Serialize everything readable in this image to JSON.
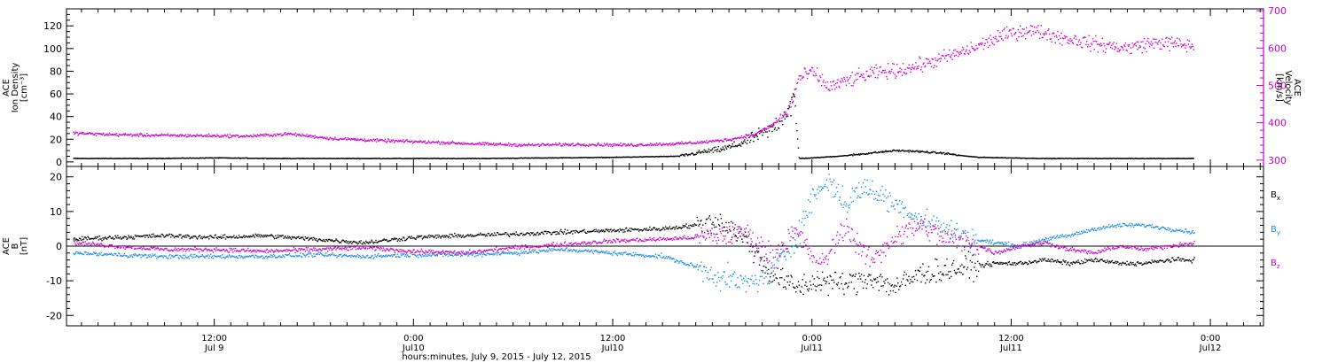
{
  "colors": {
    "axis": "#000000",
    "magenta": "#cc00cc",
    "blue": "#1f8fe6",
    "black": "#000000"
  },
  "xaxis": {
    "caption": "hours:minutes, July  9, 2015 - July 12, 2015",
    "ticks": [
      {
        "hour": 12,
        "time": "12:00",
        "date": "Jul 9"
      },
      {
        "hour": 24,
        "time": "0:00",
        "date": "Jul10"
      },
      {
        "hour": 36,
        "time": "12:00",
        "date": "Jul10"
      },
      {
        "hour": 48,
        "time": "0:00",
        "date": "Jul11"
      },
      {
        "hour": 60,
        "time": "12:00",
        "date": "Jul11"
      },
      {
        "hour": 72,
        "time": "0:00",
        "date": "Jul12"
      }
    ],
    "range_hours": [
      3.1,
      75.2
    ],
    "minor_step_hours": 1
  },
  "chart_data": [
    {
      "type": "scatter",
      "panel": "plasma",
      "ylabel_left": [
        "ACE",
        "Ion Density",
        "[cm⁻³]"
      ],
      "ylabel_right": [
        "ACE",
        "Velocity",
        "[km/s]"
      ],
      "ylim_left": [
        -4,
        135
      ],
      "ylim_right": [
        283,
        705
      ],
      "yticks_left": [
        "0",
        "20",
        "40",
        "60",
        "80",
        "100",
        "120"
      ],
      "yticks_right": [
        "300",
        "400",
        "500",
        "600",
        "700"
      ],
      "series": [
        {
          "axis": "left",
          "color": "black",
          "x_hours": [
            3.5,
            8,
            12,
            16,
            20,
            24,
            28,
            32,
            36,
            38,
            40,
            41.5,
            42.5,
            43.5,
            44.5,
            45.5,
            46.2,
            46.9,
            47.2,
            48,
            49,
            50,
            51,
            52,
            53,
            54,
            55,
            56,
            57,
            58,
            60,
            62,
            64,
            66,
            68,
            70,
            71
          ],
          "values": [
            3,
            3,
            3.5,
            3,
            3,
            3,
            3,
            3.5,
            4,
            4.5,
            5,
            9,
            11,
            15,
            22,
            28,
            40,
            55,
            3,
            3.5,
            4.5,
            5.5,
            7,
            8.5,
            10,
            9.5,
            8.5,
            7.5,
            5.5,
            4,
            3.5,
            3,
            3,
            3,
            3,
            3,
            3
          ]
        },
        {
          "axis": "right",
          "color": "magenta",
          "x_hours": [
            3.5,
            6,
            9,
            12,
            14,
            16.5,
            19,
            22,
            25,
            28,
            31,
            34,
            37,
            40,
            41.5,
            43,
            44.5,
            45.5,
            46.5,
            47.2,
            48,
            49,
            50,
            51,
            52,
            53,
            54,
            55,
            56,
            57,
            58,
            59,
            60,
            61,
            62,
            63,
            64,
            65,
            66,
            67,
            68,
            69,
            70,
            71
          ],
          "values": [
            372,
            368,
            366,
            365,
            364,
            370,
            358,
            352,
            348,
            343,
            340,
            342,
            340,
            344,
            348,
            355,
            368,
            392,
            425,
            520,
            535,
            495,
            510,
            525,
            535,
            540,
            548,
            560,
            575,
            588,
            605,
            625,
            640,
            648,
            640,
            628,
            620,
            610,
            605,
            600,
            610,
            615,
            610,
            605
          ]
        }
      ]
    },
    {
      "type": "scatter",
      "panel": "magnetic field",
      "ylabel_left": [
        "ACE",
        "B",
        "[nT]"
      ],
      "ylim": [
        -23,
        23
      ],
      "yticks": [
        "-20",
        "-10",
        "0",
        "10",
        "20"
      ],
      "zero_line": true,
      "legend": [
        {
          "text": "B",
          "sub": "x",
          "color": "black"
        },
        {
          "text": "B",
          "sub": "y",
          "color": "blue"
        },
        {
          "text": "B",
          "sub": "z",
          "color": "magenta"
        }
      ],
      "series": [
        {
          "name": "Bx",
          "color": "black",
          "x_hours": [
            3.5,
            6,
            9,
            12,
            15,
            18,
            21,
            24,
            27,
            30,
            33,
            36,
            39,
            41,
            42.5,
            44,
            45.5,
            47,
            48.5,
            50,
            51.5,
            53,
            54.5,
            56,
            57.5,
            59,
            60.5,
            62,
            63.5,
            65,
            66.5,
            68,
            69.5,
            71
          ],
          "values": [
            2,
            2.5,
            3,
            2.5,
            3,
            2,
            1,
            2.5,
            3,
            3.5,
            4,
            4.5,
            5,
            6,
            7,
            2,
            -8,
            -12,
            -10,
            -11,
            -9,
            -12,
            -8,
            -7,
            -6,
            -5,
            -5,
            -4,
            -5,
            -4,
            -5,
            -5,
            -4,
            -4
          ]
        },
        {
          "name": "By",
          "color": "blue",
          "x_hours": [
            3.5,
            6,
            9,
            12,
            15,
            18,
            21,
            24,
            27,
            30,
            33,
            36,
            39,
            41,
            42.5,
            44,
            45.5,
            47,
            48,
            49,
            50,
            51,
            52,
            53,
            54.5,
            56,
            57.5,
            59,
            60.5,
            62,
            63.5,
            65,
            66.5,
            68,
            69.5,
            71
          ],
          "values": [
            -2,
            -2.5,
            -3,
            -3,
            -3,
            -2.5,
            -3,
            -2.5,
            -2.5,
            -2,
            -1,
            -2,
            -3,
            -6,
            -9,
            -11,
            -8,
            2,
            14,
            19,
            12,
            17,
            15,
            12,
            8,
            5,
            2,
            1,
            0,
            2,
            3,
            5,
            6,
            6,
            5,
            4
          ]
        },
        {
          "name": "Bz",
          "color": "magenta",
          "x_hours": [
            3.5,
            6,
            9,
            12,
            15,
            18,
            21,
            24,
            27,
            30,
            33,
            36,
            39,
            41,
            42.5,
            44,
            45.5,
            47,
            48.5,
            50,
            51.5,
            53,
            54.5,
            56,
            57.5,
            59,
            60.5,
            62,
            63.5,
            65,
            66.5,
            68,
            69.5,
            71
          ],
          "values": [
            1,
            0,
            -1,
            -1,
            -1.5,
            -1,
            -0.5,
            -1.5,
            -2,
            -0.5,
            0.5,
            1.5,
            2,
            2.5,
            3,
            4,
            -3,
            4,
            -6,
            6,
            -5,
            3,
            6,
            2,
            1,
            -2,
            0,
            1,
            -1,
            -2,
            0,
            -1,
            0,
            1
          ]
        }
      ]
    }
  ]
}
